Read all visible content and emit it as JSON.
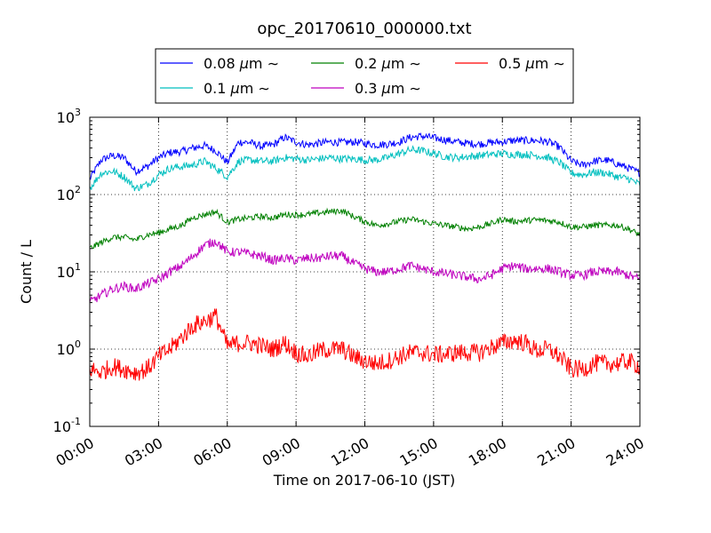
{
  "chart_data": {
    "type": "line",
    "title": "opc_20170610_000000.txt",
    "xlabel": "Time on 2017-06-10 (JST)",
    "ylabel": "Count / L",
    "y_scale": "log",
    "ylim": [
      0.1,
      1000
    ],
    "xlim": [
      "00:00",
      "24:00"
    ],
    "grid": true,
    "legend_position": "top-center, above plot",
    "x_tick_labels": [
      "00:00",
      "03:00",
      "06:00",
      "09:00",
      "12:00",
      "15:00",
      "18:00",
      "21:00",
      "24:00"
    ],
    "y_ticks": [
      {
        "base": "10",
        "exp": "-1"
      },
      {
        "base": "10",
        "exp": "0"
      },
      {
        "base": "10",
        "exp": "1"
      },
      {
        "base": "10",
        "exp": "2"
      },
      {
        "base": "10",
        "exp": "3"
      }
    ],
    "x_hours": [
      0,
      0.5,
      1,
      1.5,
      2,
      2.5,
      3,
      3.5,
      4,
      4.5,
      5,
      5.5,
      6,
      6.5,
      7,
      7.5,
      8,
      8.5,
      9,
      9.5,
      10,
      10.5,
      11,
      11.5,
      12,
      12.5,
      13,
      13.5,
      14,
      14.5,
      15,
      15.5,
      16,
      16.5,
      17,
      17.5,
      18,
      18.5,
      19,
      19.5,
      20,
      20.5,
      21,
      21.5,
      22,
      22.5,
      23,
      23.5,
      24
    ],
    "series": [
      {
        "name": "0.08",
        "color": "#0000ff",
        "values": [
          160,
          280,
          320,
          300,
          200,
          230,
          300,
          350,
          360,
          400,
          430,
          370,
          260,
          480,
          470,
          420,
          440,
          550,
          480,
          440,
          460,
          480,
          470,
          480,
          460,
          440,
          450,
          480,
          550,
          570,
          540,
          510,
          480,
          460,
          450,
          470,
          480,
          500,
          500,
          500,
          480,
          410,
          270,
          240,
          270,
          280,
          250,
          220,
          190
        ]
      },
      {
        "name": "0.1",
        "color": "#00bfbf",
        "values": [
          120,
          190,
          200,
          170,
          120,
          135,
          180,
          220,
          230,
          240,
          270,
          220,
          170,
          270,
          280,
          270,
          270,
          300,
          290,
          280,
          290,
          300,
          290,
          290,
          280,
          280,
          300,
          340,
          380,
          370,
          340,
          310,
          300,
          310,
          320,
          330,
          340,
          330,
          330,
          320,
          300,
          260,
          190,
          180,
          195,
          190,
          170,
          160,
          135
        ]
      },
      {
        "name": "0.2",
        "color": "#008000",
        "values": [
          20,
          24,
          28,
          28,
          26,
          30,
          32,
          36,
          40,
          50,
          55,
          60,
          44,
          48,
          50,
          52,
          50,
          55,
          55,
          55,
          58,
          60,
          62,
          52,
          45,
          40,
          42,
          45,
          48,
          45,
          42,
          40,
          38,
          36,
          38,
          42,
          48,
          45,
          46,
          47,
          46,
          44,
          38,
          38,
          40,
          40,
          40,
          36,
          30
        ]
      },
      {
        "name": "0.3",
        "color": "#bf00bf",
        "values": [
          4,
          5,
          6,
          6.5,
          6,
          7,
          8,
          10,
          12,
          16,
          22,
          25,
          18,
          18,
          17,
          16,
          14,
          15,
          14,
          15,
          15,
          16,
          16,
          13,
          11,
          10,
          10,
          11,
          12,
          11,
          10,
          9.5,
          9,
          8.5,
          8,
          9,
          11,
          12,
          11,
          11,
          11,
          10,
          9,
          9,
          10,
          10,
          10,
          9,
          8
        ]
      },
      {
        "name": "0.5",
        "color": "#ff0000",
        "values": [
          0.55,
          0.5,
          0.6,
          0.55,
          0.5,
          0.55,
          0.8,
          1.0,
          1.4,
          2.0,
          2.3,
          2.7,
          1.1,
          1.2,
          1.2,
          1.1,
          1.0,
          1.2,
          0.9,
          0.8,
          0.95,
          1.0,
          1.0,
          0.8,
          0.7,
          0.65,
          0.7,
          0.8,
          0.9,
          0.9,
          0.85,
          0.85,
          0.9,
          0.9,
          0.9,
          1.05,
          1.2,
          1.3,
          1.2,
          0.95,
          1.0,
          0.8,
          0.55,
          0.55,
          0.65,
          0.65,
          0.65,
          0.7,
          0.6
        ]
      }
    ],
    "legend_unit": "μm",
    "legend_tilde": "∼"
  }
}
